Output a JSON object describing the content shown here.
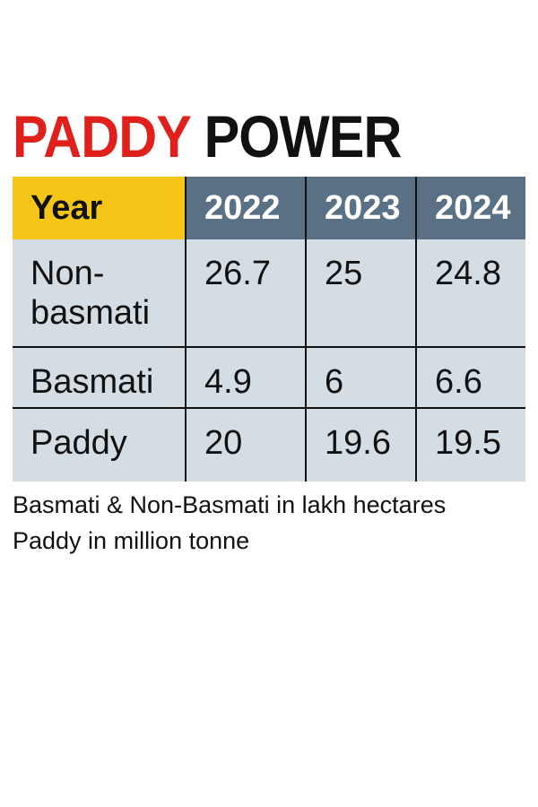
{
  "header": {
    "title": [
      "PADDY",
      "POWER"
    ]
  },
  "table": {
    "columns": [
      "Year",
      "2022",
      "2023",
      "2024"
    ],
    "rows": [
      [
        "Non-basmati",
        26.7,
        25,
        24.8
      ],
      [
        "Basmati",
        4.9,
        6,
        6.6
      ],
      [
        "Paddy",
        20,
        19.6,
        19.5
      ]
    ]
  },
  "notes": [
    "Basmati & Non-Basmati in lakh hectares",
    "Paddy in million tonne"
  ]
}
